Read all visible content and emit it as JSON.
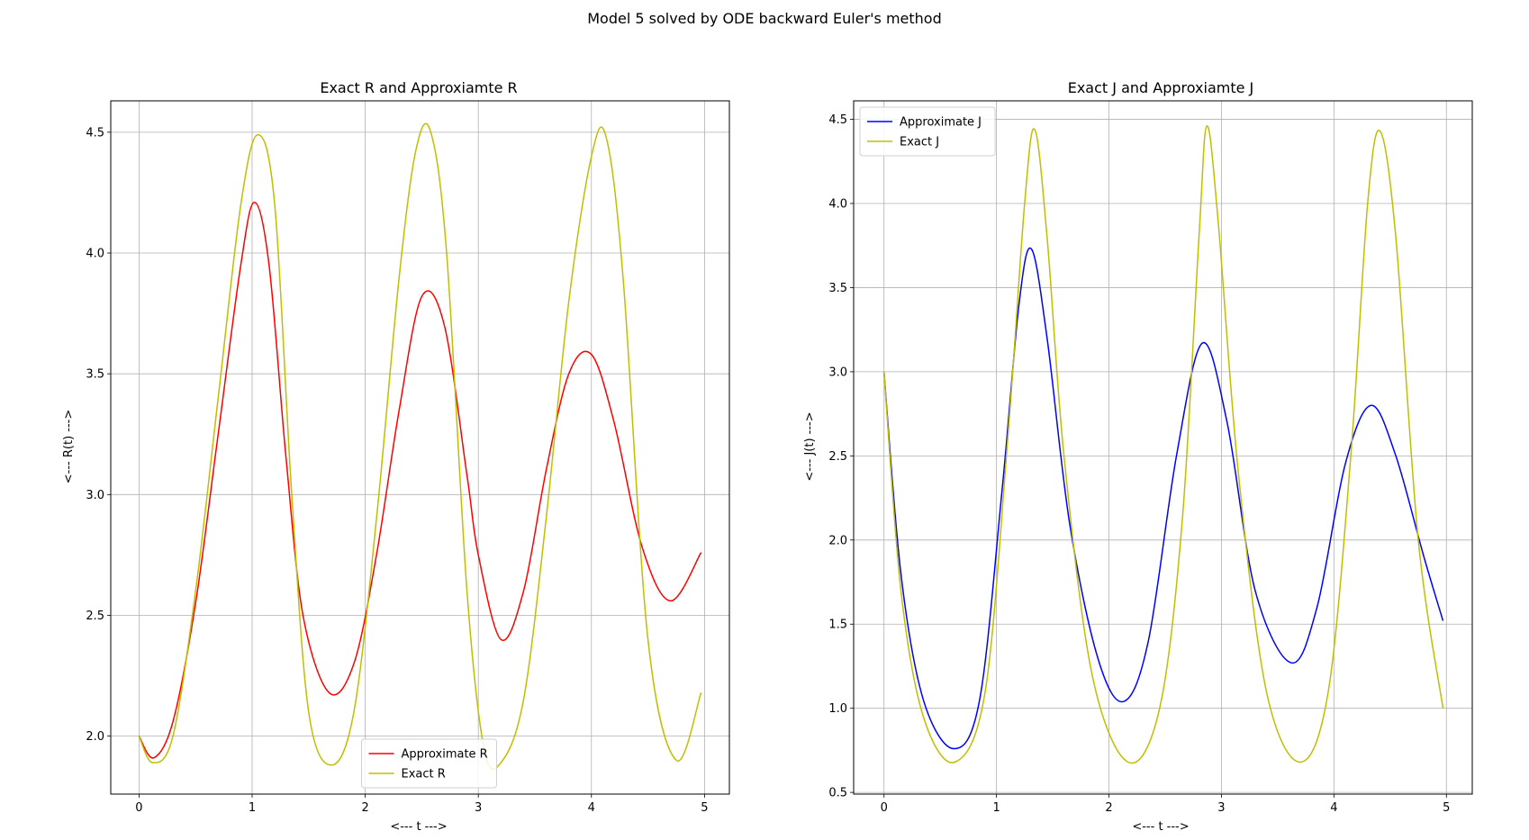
{
  "figure_title": "Model 5 solved by ODE backward Euler's method",
  "chart_data": [
    {
      "type": "line",
      "title": "Exact R and Approxiamte R",
      "xlabel": "<--- t --->",
      "ylabel": "<--- R(t) --->",
      "xlim": [
        -0.25,
        5.22
      ],
      "ylim": [
        1.76,
        4.63
      ],
      "xticks": [
        0,
        1,
        2,
        3,
        4,
        5
      ],
      "xtick_labels": [
        "0",
        "1",
        "2",
        "3",
        "4",
        "5"
      ],
      "yticks": [
        2.0,
        2.5,
        3.0,
        3.5,
        4.0,
        4.5
      ],
      "ytick_labels": [
        "2.0",
        "2.5",
        "3.0",
        "3.5",
        "4.0",
        "4.5"
      ],
      "grid": true,
      "legend_position": "lower center",
      "series": [
        {
          "name": "Approximate R",
          "color": "#ff0000",
          "x": [
            0,
            0.13,
            0.3,
            0.5,
            0.7,
            0.9,
            1.02,
            1.15,
            1.3,
            1.45,
            1.68,
            1.9,
            2.1,
            2.3,
            2.5,
            2.7,
            2.9,
            3.0,
            3.2,
            3.4,
            3.6,
            3.8,
            4.0,
            4.2,
            4.45,
            4.7,
            4.97
          ],
          "y": [
            2.0,
            1.91,
            2.06,
            2.55,
            3.25,
            3.95,
            4.21,
            3.95,
            3.15,
            2.5,
            2.18,
            2.3,
            2.75,
            3.35,
            3.82,
            3.7,
            3.08,
            2.75,
            2.4,
            2.6,
            3.1,
            3.5,
            3.58,
            3.3,
            2.78,
            2.56,
            2.76
          ]
        },
        {
          "name": "Exact R",
          "color": "#bfbf00",
          "x": [
            0,
            0.12,
            0.3,
            0.5,
            0.7,
            0.9,
            1.05,
            1.2,
            1.35,
            1.5,
            1.7,
            1.9,
            2.1,
            2.3,
            2.45,
            2.58,
            2.72,
            2.9,
            3.05,
            3.2,
            3.4,
            3.6,
            3.8,
            4.0,
            4.13,
            4.28,
            4.5,
            4.75,
            4.97
          ],
          "y": [
            2.0,
            1.89,
            2.0,
            2.6,
            3.4,
            4.2,
            4.49,
            4.2,
            3.0,
            2.1,
            1.88,
            2.1,
            2.9,
            3.9,
            4.43,
            4.5,
            4.0,
            2.6,
            1.95,
            1.89,
            2.15,
            2.9,
            3.8,
            4.4,
            4.48,
            3.9,
            2.4,
            1.9,
            2.18
          ]
        }
      ]
    },
    {
      "type": "line",
      "title": "Exact J and Approxiamte J",
      "xlabel": "<--- t --->",
      "ylabel": "<--- J(t) --->",
      "xlim": [
        -0.27,
        5.23
      ],
      "ylim": [
        0.49,
        4.61
      ],
      "xticks": [
        0,
        1,
        2,
        3,
        4,
        5
      ],
      "xtick_labels": [
        "0",
        "1",
        "2",
        "3",
        "4",
        "5"
      ],
      "yticks": [
        0.5,
        1.0,
        1.5,
        2.0,
        2.5,
        3.0,
        3.5,
        4.0,
        4.5
      ],
      "ytick_labels": [
        "0.5",
        "1.0",
        "1.5",
        "2.0",
        "2.5",
        "3.0",
        "3.5",
        "4.0",
        "4.5"
      ],
      "grid": true,
      "legend_position": "upper left",
      "series": [
        {
          "name": "Approximate J",
          "color": "#0000ff",
          "x": [
            0,
            0.15,
            0.35,
            0.62,
            0.85,
            1.05,
            1.2,
            1.31,
            1.45,
            1.65,
            1.9,
            2.13,
            2.35,
            2.6,
            2.83,
            3.05,
            3.3,
            3.62,
            3.85,
            4.1,
            4.33,
            4.55,
            4.8,
            4.97
          ],
          "y": [
            3.0,
            1.8,
            1.05,
            0.76,
            1.05,
            2.3,
            3.4,
            3.73,
            3.2,
            2.1,
            1.3,
            1.04,
            1.4,
            2.5,
            3.17,
            2.7,
            1.7,
            1.27,
            1.6,
            2.45,
            2.8,
            2.5,
            1.9,
            1.52
          ]
        },
        {
          "name": "Exact J",
          "color": "#bfbf00",
          "x": [
            0,
            0.15,
            0.35,
            0.63,
            0.9,
            1.1,
            1.25,
            1.34,
            1.45,
            1.6,
            1.85,
            2.17,
            2.45,
            2.65,
            2.8,
            2.87,
            2.97,
            3.15,
            3.4,
            3.7,
            3.95,
            4.15,
            4.3,
            4.41,
            4.55,
            4.75,
            4.97
          ],
          "y": [
            3.0,
            1.7,
            0.95,
            0.68,
            1.1,
            2.6,
            4.0,
            4.44,
            3.8,
            2.5,
            1.2,
            0.68,
            1.0,
            2.1,
            3.8,
            4.46,
            3.9,
            2.4,
            1.1,
            0.68,
            1.1,
            2.5,
            4.0,
            4.43,
            3.8,
            2.0,
            1.0
          ]
        }
      ]
    }
  ]
}
